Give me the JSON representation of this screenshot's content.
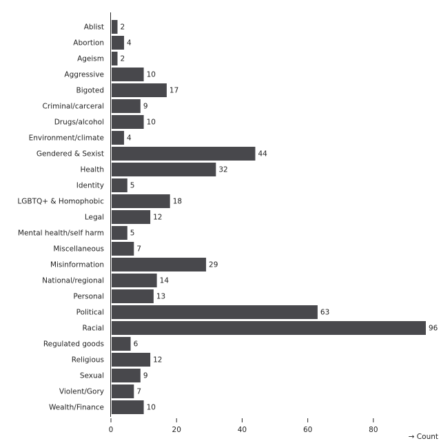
{
  "chart_data": {
    "type": "bar",
    "orientation": "horizontal",
    "categories": [
      "Ablist",
      "Abortion",
      "Ageism",
      "Aggressive",
      "Bigoted",
      "Criminal/carceral",
      "Drugs/alcohol",
      "Environment/climate",
      "Gendered & Sexist",
      "Health",
      "Identity",
      "LGBTQ+ & Homophobic",
      "Legal",
      "Mental health/self harm",
      "Miscellaneous",
      "Misinformation",
      "National/regional",
      "Personal",
      "Political",
      "Racial",
      "Regulated goods",
      "Religious",
      "Sexual",
      "Violent/Gory",
      "Wealth/Finance"
    ],
    "values": [
      2,
      4,
      2,
      10,
      17,
      9,
      10,
      4,
      44,
      32,
      5,
      18,
      12,
      5,
      7,
      29,
      14,
      13,
      63,
      96,
      6,
      12,
      9,
      7,
      10
    ],
    "xlabel": "→ Count",
    "ylabel": "",
    "xlim": [
      0,
      96
    ],
    "xticks": [
      0,
      20,
      40,
      60,
      80
    ],
    "bar_color": "#48484c",
    "grid": false
  }
}
